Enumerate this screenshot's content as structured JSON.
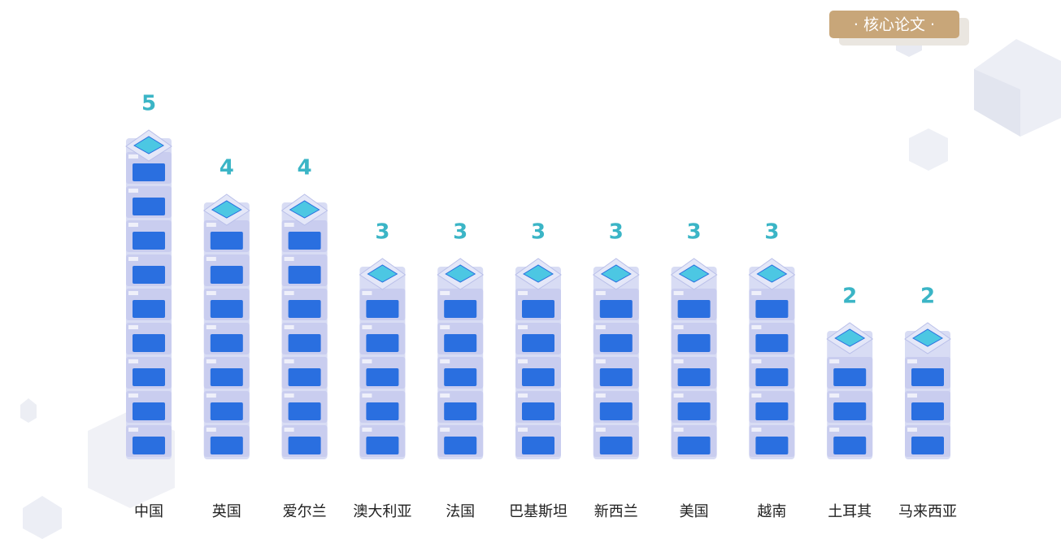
{
  "chart_data": {
    "type": "bar",
    "title": "· 核心论文 ·",
    "categories": [
      "中国",
      "英国",
      "爱尔兰",
      "澳大利亚",
      "法国",
      "巴基斯坦",
      "新西兰",
      "美国",
      "越南",
      "土耳其",
      "马来西亚"
    ],
    "values": [
      5,
      4,
      4,
      3,
      3,
      3,
      3,
      3,
      3,
      2,
      2
    ],
    "color": "#2a6fe0",
    "value_label_color": "#3bb5c6"
  }
}
